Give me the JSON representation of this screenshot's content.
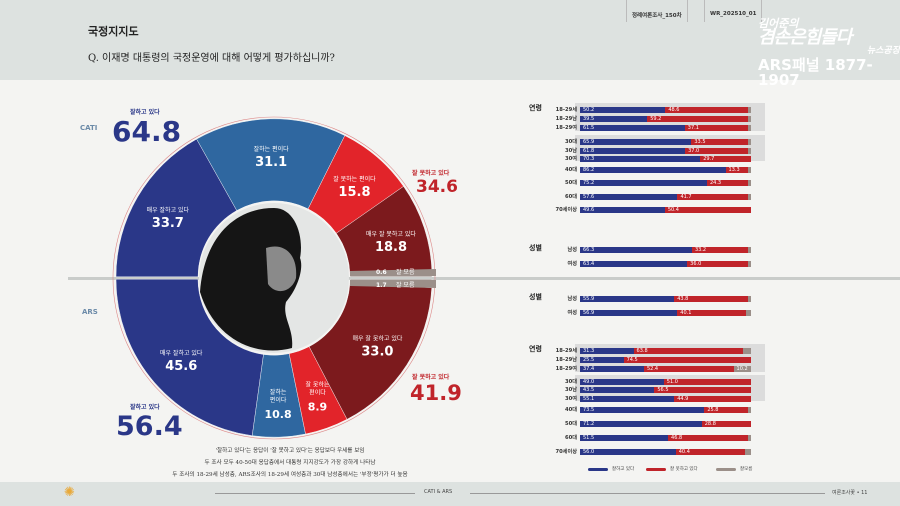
{
  "header": {
    "title": "국정지지도",
    "question": "Q. 이재명 대통령의 국정운영에 대해 어떻게 평가하십니까?",
    "tab1": "정례여론조사_150차",
    "tab2": "WR_202510_01",
    "logo": {
      "line1": "김어준의",
      "line2": "겸손은힘들다",
      "line3": "뉴스공장",
      "line4": "ARS패널 1877-1907"
    }
  },
  "colors": {
    "very_good": "#2a3788",
    "good": "#2f67a0",
    "bad": "#e2242a",
    "very_bad": "#7c1a1d",
    "unknown": "#9b8f89"
  },
  "donut": {
    "cati": {
      "label": "CATI",
      "positive_label": "잘하고 있다",
      "positive": "64.8",
      "negative_label": "잘 못하고 있다",
      "negative": "34.6",
      "segments": [
        {
          "key": "very_good",
          "label": "매우 잘하고 있다",
          "value": 33.7
        },
        {
          "key": "good",
          "label": "잘하는 편이다",
          "value": 31.1
        },
        {
          "key": "bad",
          "label": "잘 못하는 편이다",
          "value": 15.8
        },
        {
          "key": "very_bad",
          "label": "매우 잘 못하고 있다",
          "value": 18.8
        },
        {
          "key": "unknown",
          "label": "잘 모름",
          "value": 0.6
        }
      ]
    },
    "ars": {
      "label": "ARS",
      "positive_label": "잘하고 있다",
      "positive": "56.4",
      "negative_label": "잘 못하고 있다",
      "negative": "41.9",
      "segments": [
        {
          "key": "very_good",
          "label": "매우 잘하고 있다",
          "value": 45.6
        },
        {
          "key": "good",
          "label": "잘하는 편이다",
          "value": 10.8
        },
        {
          "key": "bad",
          "label": "잘 못하는 편이다",
          "value": 8.9
        },
        {
          "key": "very_bad",
          "label": "매우 잘 못하고 있다",
          "value": 33.0
        },
        {
          "key": "unknown",
          "label": "잘 모름",
          "value": 1.7
        }
      ]
    }
  },
  "notes": [
    "'잘하고 있다'는 응답이 '잘 못하고 있다'는 응답보다 우세를 보임",
    "두 조사 모두 40-50대 응답층에서 대통령 지지강도가 가장 강하게 나타남",
    "두 조사의 18-29세 남성층, ARS조사의 18-29세 여성층과 30대 남성층에서는 '부정'평가가 더 높음"
  ],
  "bars": {
    "sections": [
      {
        "label": "연령",
        "y": 104
      },
      {
        "label": "성별",
        "y": 244
      },
      {
        "label": "성별",
        "y": 293
      },
      {
        "label": "연령",
        "y": 345
      }
    ],
    "rows": [
      {
        "label": "18-29세",
        "pos": 50.2,
        "neg": 48.6,
        "y": 107
      },
      {
        "label": "18-29남",
        "pos": 39.5,
        "neg": 59.2,
        "y": 116
      },
      {
        "label": "18-29여",
        "pos": 61.5,
        "neg": 37.1,
        "y": 125
      },
      {
        "label": "30대",
        "pos": 65.9,
        "neg": 33.5,
        "y": 139
      },
      {
        "label": "30남",
        "pos": 61.8,
        "neg": 37.0,
        "y": 148
      },
      {
        "label": "30여",
        "pos": 70.3,
        "neg": 29.7,
        "y": 156
      },
      {
        "label": "40대",
        "pos": 86.2,
        "neg": 13.3,
        "y": 167
      },
      {
        "label": "50대",
        "pos": 75.2,
        "neg": 24.3,
        "y": 180
      },
      {
        "label": "60대",
        "pos": 57.6,
        "neg": 41.7,
        "y": 194
      },
      {
        "label": "70세이상",
        "pos": 49.6,
        "neg": 50.4,
        "y": 207
      },
      {
        "label": "남성",
        "pos": 66.3,
        "neg": 33.2,
        "y": 247
      },
      {
        "label": "여성",
        "pos": 63.4,
        "neg": 36.0,
        "y": 261
      },
      {
        "label": "남성",
        "pos": 55.9,
        "neg": 43.8,
        "y": 296
      },
      {
        "label": "여성",
        "pos": 56.9,
        "neg": 40.1,
        "y": 310
      },
      {
        "label": "18-29세",
        "pos": 31.3,
        "neg": 63.8,
        "y": 348
      },
      {
        "label": "18-29남",
        "pos": 25.5,
        "neg": 74.5,
        "y": 357
      },
      {
        "label": "18-29여",
        "pos": 37.4,
        "neg": 52.4,
        "unk": "10.2",
        "y": 366
      },
      {
        "label": "30대",
        "pos": 49.0,
        "neg": 51.0,
        "y": 379
      },
      {
        "label": "30남",
        "pos": 43.5,
        "neg": 56.5,
        "y": 387
      },
      {
        "label": "30여",
        "pos": 55.1,
        "neg": 44.9,
        "y": 396
      },
      {
        "label": "40대",
        "pos": 73.5,
        "neg": 25.8,
        "y": 407
      },
      {
        "label": "50대",
        "pos": 71.2,
        "neg": 28.8,
        "y": 421
      },
      {
        "label": "60대",
        "pos": 51.5,
        "neg": 46.8,
        "y": 435
      },
      {
        "label": "70세이상",
        "pos": 56.0,
        "neg": 40.4,
        "y": 449
      }
    ],
    "legend": [
      "잘하고 있다",
      "잘 못하고 있다",
      "잘모름"
    ]
  },
  "footer": {
    "center": "CATI & ARS",
    "right": "여론조사꽃 • 11"
  }
}
